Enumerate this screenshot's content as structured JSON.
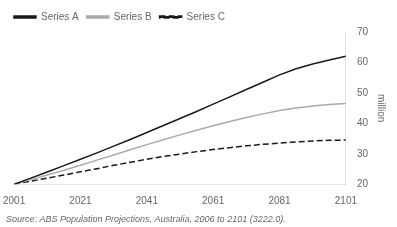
{
  "chart_data": {
    "type": "line",
    "x": [
      2001,
      2006,
      2011,
      2016,
      2021,
      2026,
      2031,
      2036,
      2041,
      2046,
      2051,
      2056,
      2061,
      2066,
      2071,
      2076,
      2081,
      2086,
      2091,
      2096,
      2101
    ],
    "series": [
      {
        "name": "Series A",
        "color": "#1a1a1a",
        "line_style": "solid",
        "values": [
          20.0,
          22.0,
          24.0,
          26.1,
          28.2,
          30.3,
          32.5,
          34.7,
          37.0,
          39.3,
          41.6,
          43.9,
          46.3,
          48.7,
          51.1,
          53.5,
          55.9,
          57.9,
          59.5,
          60.8,
          62.0
        ]
      },
      {
        "name": "Series B",
        "color": "#aaaaaa",
        "line_style": "solid",
        "values": [
          20.0,
          21.5,
          23.0,
          24.6,
          26.2,
          27.9,
          29.6,
          31.3,
          33.0,
          34.6,
          36.2,
          37.7,
          39.2,
          40.6,
          41.9,
          43.1,
          44.2,
          45.0,
          45.7,
          46.2,
          46.5
        ]
      },
      {
        "name": "Series C",
        "color": "#1a1a1a",
        "line_style": "dashed",
        "values": [
          20.0,
          21.0,
          22.0,
          23.0,
          24.1,
          25.1,
          26.2,
          27.2,
          28.2,
          29.1,
          29.9,
          30.7,
          31.4,
          32.0,
          32.6,
          33.1,
          33.5,
          33.9,
          34.2,
          34.4,
          34.5
        ]
      }
    ],
    "xlim": [
      2001,
      2101
    ],
    "ylim": [
      20,
      70
    ],
    "xticks": [
      2001,
      2021,
      2041,
      2061,
      2081,
      2101
    ],
    "yticks": [
      20,
      30,
      40,
      50,
      60,
      70
    ],
    "ylabel": "million",
    "annotations": [
      "Source: ABS Population Projections, Australia, 2006 to 2101 (3222.0)."
    ],
    "legend": "upper left",
    "grid": false
  }
}
